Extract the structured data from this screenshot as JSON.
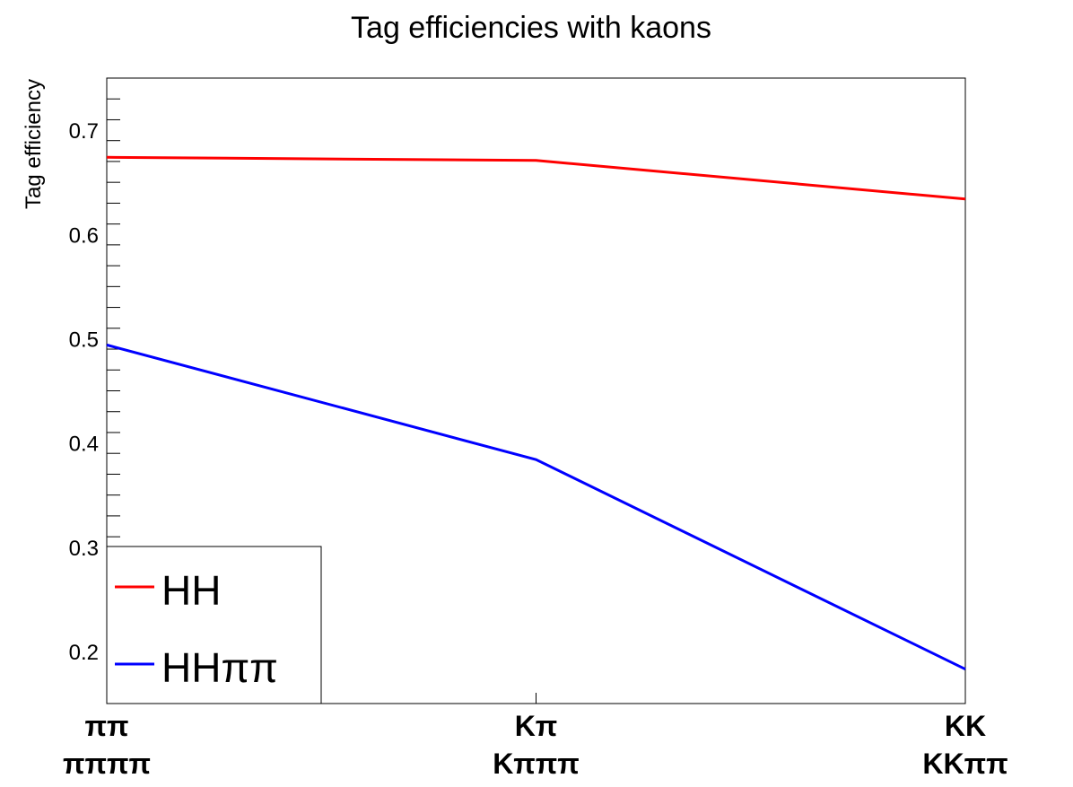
{
  "chart_data": {
    "type": "line",
    "title": "Tag efficiencies with kaons",
    "xlabel": "",
    "ylabel": "Tag efficiency",
    "ylim": [
      0.15,
      0.75
    ],
    "y_ticks": [
      "0.2",
      "0.3",
      "0.4",
      "0.5",
      "0.6",
      "0.7"
    ],
    "y_tick_values": [
      0.2,
      0.3,
      0.4,
      0.5,
      0.6,
      0.7
    ],
    "categories": [
      {
        "top": "ππ",
        "bottom": "ππππ"
      },
      {
        "top": "Kπ",
        "bottom": "Kπππ"
      },
      {
        "top": "KK",
        "bottom": "KKππ"
      }
    ],
    "series": [
      {
        "name": "HH",
        "color": "#ff0000",
        "values": [
          0.674,
          0.671,
          0.634
        ]
      },
      {
        "name": "HHππ",
        "color": "#0000ff",
        "values": [
          0.494,
          0.384,
          0.183
        ]
      }
    ],
    "legend_position": "bottom-left",
    "grid": false
  }
}
